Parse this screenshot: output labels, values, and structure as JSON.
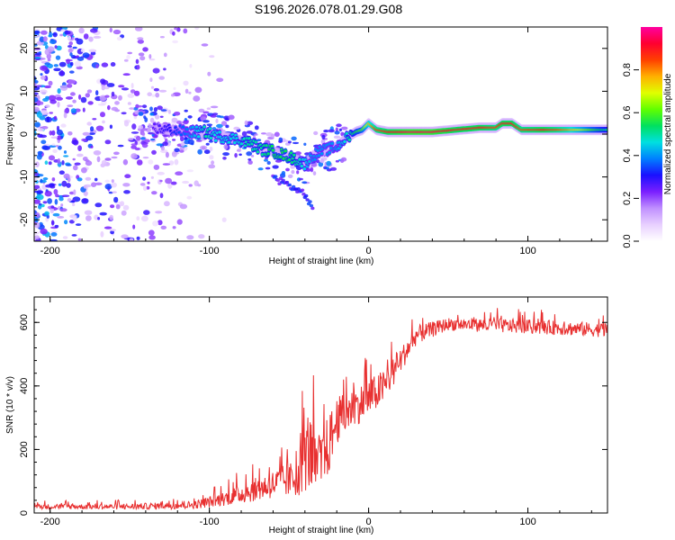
{
  "title": "S196.2026.078.01.29.G08",
  "chart_data": [
    {
      "type": "heatmap",
      "name": "spectrogram",
      "xlabel": "Height of straight line (km)",
      "ylabel": "Frequency (Hz)",
      "xlim": [
        -210,
        150
      ],
      "ylim": [
        -25,
        25
      ],
      "xticks": [
        -200,
        -100,
        0,
        100
      ],
      "yticks": [
        -20,
        -10,
        0,
        10,
        20
      ],
      "colorbar": {
        "label": "Normalized spectral amplitude",
        "range": [
          0,
          1
        ],
        "ticks": [
          0.0,
          0.2,
          0.4,
          0.6,
          0.8
        ],
        "colors": [
          "#ffffff",
          "#e8d0ff",
          "#c090ff",
          "#7a1fff",
          "#1a10ff",
          "#0080ff",
          "#00e0e0",
          "#00e060",
          "#60ff00",
          "#e0ff00",
          "#ffb000",
          "#ff4000",
          "#ff0030",
          "#ff00a0"
        ]
      },
      "ridge": [
        {
          "x": -135,
          "f": 1.5,
          "a": 0.25
        },
        {
          "x": -125,
          "f": 1.0,
          "a": 0.3
        },
        {
          "x": -112,
          "f": 0.5,
          "a": 0.4
        },
        {
          "x": -102,
          "f": 0.5,
          "a": 0.5
        },
        {
          "x": -95,
          "f": -0.5,
          "a": 0.45
        },
        {
          "x": -85,
          "f": -1.0,
          "a": 0.45
        },
        {
          "x": -75,
          "f": -2.0,
          "a": 0.5
        },
        {
          "x": -68,
          "f": -3.5,
          "a": 0.5
        },
        {
          "x": -60,
          "f": -4.0,
          "a": 0.55
        },
        {
          "x": -52,
          "f": -5.0,
          "a": 0.55
        },
        {
          "x": -45,
          "f": -6.0,
          "a": 0.5
        },
        {
          "x": -40,
          "f": -7.0,
          "a": 0.45
        },
        {
          "x": -35,
          "f": -5.0,
          "a": 0.4
        },
        {
          "x": -30,
          "f": -4.0,
          "a": 0.4
        },
        {
          "x": -25,
          "f": -3.5,
          "a": 0.4
        },
        {
          "x": -20,
          "f": -3.0,
          "a": 0.4
        },
        {
          "x": -16,
          "f": -1.5,
          "a": 0.45
        },
        {
          "x": -12,
          "f": -0.5,
          "a": 0.5
        },
        {
          "x": -8,
          "f": 0.5,
          "a": 0.55
        },
        {
          "x": -4,
          "f": 1.0,
          "a": 0.6
        },
        {
          "x": 0,
          "f": 2.5,
          "a": 0.75
        },
        {
          "x": 5,
          "f": 1.0,
          "a": 0.85
        },
        {
          "x": 12,
          "f": 0.5,
          "a": 0.9
        },
        {
          "x": 25,
          "f": 0.5,
          "a": 0.95
        },
        {
          "x": 40,
          "f": 0.5,
          "a": 0.95
        },
        {
          "x": 55,
          "f": 1.0,
          "a": 0.9
        },
        {
          "x": 70,
          "f": 1.5,
          "a": 0.9
        },
        {
          "x": 80,
          "f": 1.5,
          "a": 0.85
        },
        {
          "x": 84,
          "f": 2.5,
          "a": 0.9
        },
        {
          "x": 90,
          "f": 2.5,
          "a": 0.9
        },
        {
          "x": 96,
          "f": 1.0,
          "a": 0.85
        },
        {
          "x": 110,
          "f": 1.0,
          "a": 0.9
        },
        {
          "x": 125,
          "f": 1.0,
          "a": 0.8
        },
        {
          "x": 140,
          "f": 1.0,
          "a": 0.6
        },
        {
          "x": 150,
          "f": 1.0,
          "a": 0.5
        }
      ],
      "branch": [
        {
          "x": -60,
          "f": -10.0
        },
        {
          "x": -50,
          "f": -12.0
        },
        {
          "x": -40,
          "f": -14.0
        },
        {
          "x": -35,
          "f": -18.0
        }
      ]
    },
    {
      "type": "line",
      "name": "snr",
      "xlabel": "Height of straight line (km)",
      "ylabel": "SNR (10 * v/v)",
      "xlim": [
        -210,
        150
      ],
      "ylim": [
        0,
        680
      ],
      "xticks": [
        -200,
        -100,
        0,
        100
      ],
      "yticks": [
        0,
        200,
        400,
        600
      ],
      "color": "#e83030",
      "envelope": [
        {
          "x": -210,
          "mean": 20,
          "jitter": 15
        },
        {
          "x": -150,
          "mean": 20,
          "jitter": 18
        },
        {
          "x": -110,
          "mean": 25,
          "jitter": 25
        },
        {
          "x": -95,
          "mean": 40,
          "jitter": 40
        },
        {
          "x": -80,
          "mean": 60,
          "jitter": 60
        },
        {
          "x": -60,
          "mean": 90,
          "jitter": 90
        },
        {
          "x": -45,
          "mean": 110,
          "jitter": 120
        },
        {
          "x": -38,
          "mean": 200,
          "jitter": 260
        },
        {
          "x": -32,
          "mean": 130,
          "jitter": 180
        },
        {
          "x": -26,
          "mean": 200,
          "jitter": 200
        },
        {
          "x": -20,
          "mean": 290,
          "jitter": 150
        },
        {
          "x": -10,
          "mean": 330,
          "jitter": 120
        },
        {
          "x": 0,
          "mean": 360,
          "jitter": 120
        },
        {
          "x": 10,
          "mean": 400,
          "jitter": 110
        },
        {
          "x": 20,
          "mean": 480,
          "jitter": 80
        },
        {
          "x": 30,
          "mean": 560,
          "jitter": 60
        },
        {
          "x": 50,
          "mean": 595,
          "jitter": 40
        },
        {
          "x": 80,
          "mean": 590,
          "jitter": 45
        },
        {
          "x": 110,
          "mean": 585,
          "jitter": 45
        },
        {
          "x": 150,
          "mean": 575,
          "jitter": 45
        }
      ]
    }
  ]
}
